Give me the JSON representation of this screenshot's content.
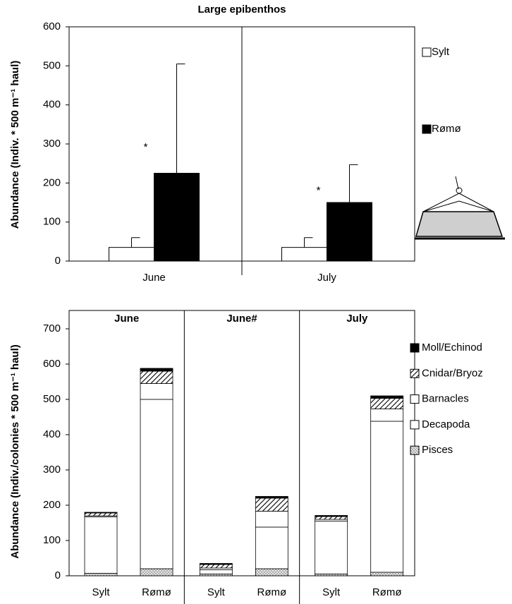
{
  "chart_data": [
    {
      "type": "bar",
      "title": "Large epibenthos",
      "y_label": "Abundance (Indiv. * 500 m⁻¹ haul)",
      "categories": [
        "June",
        "July"
      ],
      "series": [
        {
          "name": "Sylt",
          "color": "#ffffff",
          "values": [
            35,
            35
          ],
          "errors": [
            25,
            25
          ]
        },
        {
          "name": "Rømø",
          "color": "#000000",
          "values": [
            225,
            150
          ],
          "errors": [
            280,
            97
          ]
        }
      ],
      "annotations": [
        "*",
        "*"
      ],
      "ylim": [
        0,
        600
      ],
      "yticks": [
        0,
        100,
        200,
        300,
        400,
        500,
        600
      ],
      "legend": "right"
    },
    {
      "type": "stacked_bar",
      "y_label": "Abundance (Indiv./colonies * 500 m⁻¹ haul)",
      "groups": [
        "June",
        "June#",
        "July"
      ],
      "categories": [
        "Sylt",
        "Rømø",
        "Sylt",
        "Rømø",
        "Sylt",
        "Rømø"
      ],
      "series": [
        {
          "name": "Pisces",
          "color": "#d0d0d0",
          "pattern": "dots",
          "values": [
            7,
            20,
            5,
            20,
            5,
            10
          ]
        },
        {
          "name": "Decapoda",
          "color": "#ffffff",
          "values": [
            160,
            480,
            12,
            118,
            150,
            428
          ]
        },
        {
          "name": "Barnacles",
          "color": "#ffffff",
          "values": [
            3,
            45,
            5,
            45,
            5,
            35
          ]
        },
        {
          "name": "Cnidar/Bryoz",
          "color": "#888888",
          "pattern": "hatch",
          "values": [
            8,
            35,
            10,
            37,
            8,
            30
          ]
        },
        {
          "name": "Moll/Echinod",
          "color": "#000000",
          "values": [
            2,
            8,
            3,
            5,
            3,
            7
          ]
        }
      ],
      "ylim": [
        0,
        700
      ],
      "yticks": [
        0,
        100,
        200,
        300,
        400,
        500,
        600,
        700
      ],
      "legend": "right"
    }
  ]
}
